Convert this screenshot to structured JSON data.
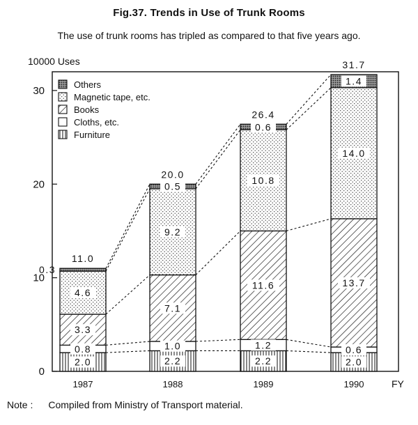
{
  "title": "Fig.37. Trends in Use of Trunk Rooms",
  "subtitle": "The use of trunk rooms has tripled as compared to that five years ago.",
  "note_label": "Note :",
  "note_text": "Compiled from Ministry of Transport material.",
  "chart_data": {
    "type": "bar",
    "stacked": true,
    "ylabel": "10000 Uses",
    "xlabel": "FY",
    "ylim": [
      0,
      32
    ],
    "yticks": [
      0,
      10,
      20,
      30
    ],
    "categories": [
      "1987",
      "1988",
      "1989",
      "1990"
    ],
    "series": [
      {
        "name": "Furniture",
        "pattern": "vertical-lines",
        "values": [
          2.0,
          2.2,
          2.2,
          2.0
        ],
        "labels": [
          "2.0",
          "2.2",
          "2.2",
          "2.0"
        ]
      },
      {
        "name": "Cloths, etc.",
        "pattern": "blank",
        "values": [
          0.8,
          1.0,
          1.2,
          0.6
        ],
        "labels": [
          "0.8",
          "1.0",
          "1.2",
          "0.6"
        ]
      },
      {
        "name": "Books",
        "pattern": "diagonal-lines",
        "values": [
          3.3,
          7.1,
          11.6,
          13.7
        ],
        "labels": [
          "3.3",
          "7.1",
          "11.6",
          "13.7"
        ]
      },
      {
        "name": "Magnetic tape, etc.",
        "pattern": "sparse-dots",
        "values": [
          4.6,
          9.2,
          10.8,
          14.0
        ],
        "labels": [
          "4.6",
          "9.2",
          "10.8",
          "14.0"
        ]
      },
      {
        "name": "Others",
        "pattern": "dense-dots",
        "values": [
          0.3,
          0.5,
          0.6,
          1.4
        ],
        "labels": [
          "0.3",
          "0.5",
          "0.6",
          "1.4"
        ]
      }
    ],
    "totals": [
      11.0,
      20.0,
      26.4,
      31.7
    ],
    "total_labels": [
      "11.0",
      "20.0",
      "26.4",
      "31.7"
    ],
    "legend_order": [
      "Others",
      "Magnetic tape, etc.",
      "Books",
      "Cloths, etc.",
      "Furniture"
    ],
    "legend_position": "top-left",
    "connector_lines": "dashed lines join matching segment boundaries between adjacent bars",
    "grid": false
  }
}
